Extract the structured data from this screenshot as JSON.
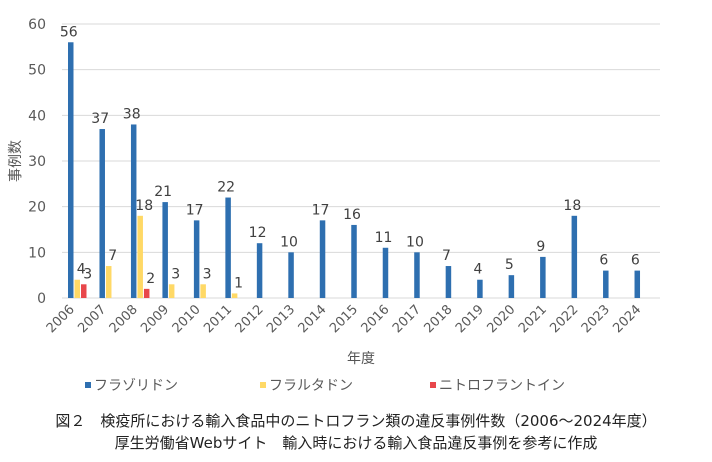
{
  "chart_data": {
    "type": "bar",
    "xlabel": "年度",
    "ylabel": "事例数",
    "ylim": [
      0,
      60
    ],
    "yticks": [
      0,
      10,
      20,
      30,
      40,
      50,
      60
    ],
    "grid": true,
    "legend_position": "bottom",
    "categories": [
      "2006",
      "2007",
      "2008",
      "2009",
      "2010",
      "2011",
      "2012",
      "2013",
      "2014",
      "2015",
      "2016",
      "2017",
      "2018",
      "2019",
      "2020",
      "2021",
      "2022",
      "2023",
      "2024"
    ],
    "series": [
      {
        "name": "フラゾリドン",
        "color": "#2e6fb0",
        "values": [
          56,
          37,
          38,
          21,
          17,
          22,
          12,
          10,
          17,
          16,
          11,
          10,
          7,
          4,
          5,
          9,
          18,
          6,
          6
        ]
      },
      {
        "name": "フラルタドン",
        "color": "#ffd966",
        "values": [
          4,
          7,
          18,
          3,
          3,
          1,
          null,
          null,
          null,
          null,
          null,
          null,
          null,
          null,
          null,
          null,
          null,
          null,
          null
        ]
      },
      {
        "name": "ニトロフラントイン",
        "color": "#e8474b",
        "values": [
          3,
          null,
          2,
          null,
          null,
          null,
          null,
          null,
          null,
          null,
          null,
          null,
          null,
          null,
          null,
          null,
          null,
          null,
          null
        ]
      }
    ]
  },
  "caption": {
    "line1": "図２　検疫所における輸入食品中のニトロフラン類の違反事例件数（2006～2024年度）",
    "line2": "厚生労働省Webサイト　輸入時における輸入食品違反事例を参考に作成"
  }
}
